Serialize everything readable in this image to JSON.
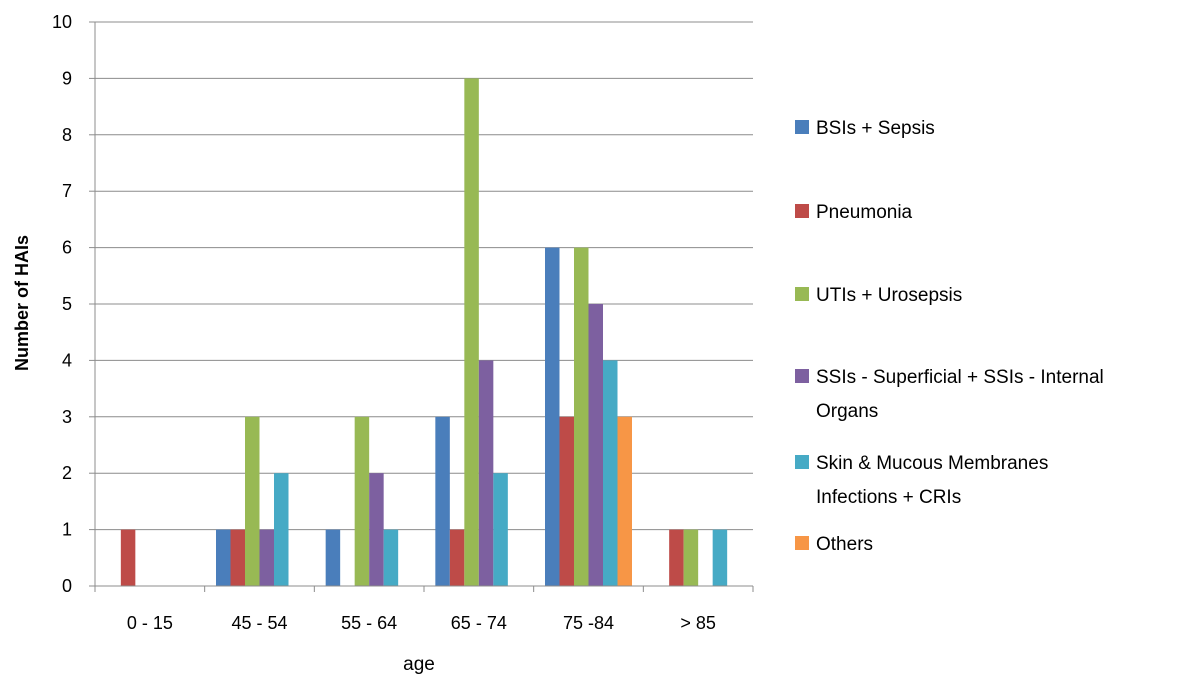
{
  "chart_data": {
    "type": "bar",
    "title": "",
    "xlabel": "age",
    "ylabel": "Number of HAIs",
    "ylim": [
      0,
      10
    ],
    "yticks": [
      "0",
      "1",
      "2",
      "3",
      "4",
      "5",
      "6",
      "7",
      "8",
      "9",
      "10"
    ],
    "categories": [
      "0 - 15",
      "45 - 54",
      "55 - 64",
      "65 - 74",
      "75 -84",
      "> 85"
    ],
    "grid": "horizontal",
    "legend_position": "right",
    "series": [
      {
        "name": "BSIs + Sepsis",
        "legend_lines": [
          "BSIs + Sepsis"
        ],
        "color": "#4A7EBB",
        "values": [
          0,
          1,
          1,
          3,
          6,
          0
        ]
      },
      {
        "name": "Pneumonia",
        "legend_lines": [
          "Pneumonia"
        ],
        "color": "#BE4B48",
        "values": [
          1,
          1,
          0,
          1,
          3,
          1
        ]
      },
      {
        "name": "UTIs + Urosepsis",
        "legend_lines": [
          "UTIs + Urosepsis"
        ],
        "color": "#98B954",
        "values": [
          0,
          3,
          3,
          9,
          6,
          1
        ]
      },
      {
        "name": "SSIs - Superficial + SSIs - Internal Organs",
        "legend_lines": [
          "SSIs - Superficial + SSIs - Internal",
          "Organs"
        ],
        "color": "#7D60A0",
        "values": [
          0,
          1,
          2,
          4,
          5,
          0
        ]
      },
      {
        "name": "Skin & Mucous Membranes Infections + CRIs",
        "legend_lines": [
          "Skin & Mucous Membranes",
          "Infections + CRIs"
        ],
        "color": "#46AAC5",
        "values": [
          0,
          2,
          1,
          2,
          4,
          1
        ]
      },
      {
        "name": "Others",
        "legend_lines": [
          "Others"
        ],
        "color": "#F79646",
        "values": [
          0,
          0,
          0,
          0,
          3,
          0
        ]
      }
    ]
  },
  "colors": {
    "gridline": "#8c8c8c",
    "axis": "#8c8c8c"
  }
}
